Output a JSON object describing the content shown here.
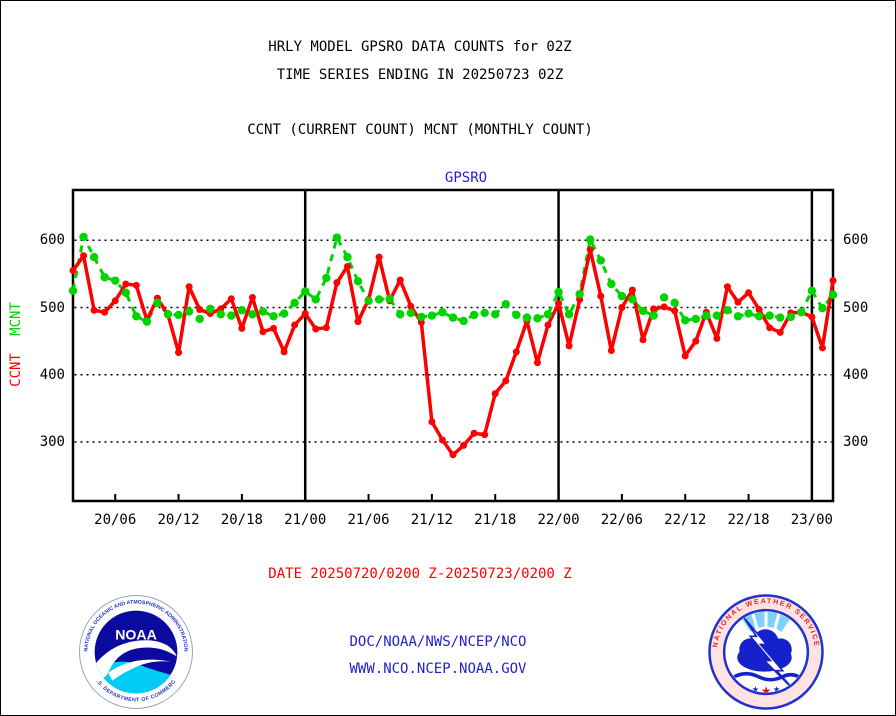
{
  "header": {
    "line1": "HRLY MODEL GPSRO DATA COUNTS for 02Z",
    "line2": "TIME SERIES ENDING IN 20250723 02Z",
    "line3": "CCNT (CURRENT COUNT) MCNT (MONTHLY COUNT)"
  },
  "chart": {
    "title": "GPSRO",
    "mcnt_label": "MCNT",
    "ccnt_label": "CCNT"
  },
  "chart_data": {
    "type": "line",
    "title": "GPSRO",
    "xlabel": "",
    "ylabel_left": "CCNT MCNT",
    "grid": "dotted-horizontal",
    "ylim": [
      212,
      675
    ],
    "y_ticks": [
      600,
      500,
      400,
      300
    ],
    "x_tick_labels": [
      "20/06",
      "20/12",
      "20/18",
      "21/00",
      "21/06",
      "21/12",
      "21/18",
      "22/00",
      "22/06",
      "22/12",
      "22/18",
      "23/00"
    ],
    "x_tick_indices": [
      4,
      10,
      16,
      22,
      28,
      34,
      40,
      46,
      52,
      58,
      64,
      70
    ],
    "major_vline_indices": [
      22,
      46,
      70
    ],
    "categories": [
      "20/02",
      "20/03",
      "20/04",
      "20/05",
      "20/06",
      "20/07",
      "20/08",
      "20/09",
      "20/10",
      "20/11",
      "20/12",
      "20/13",
      "20/14",
      "20/15",
      "20/16",
      "20/17",
      "20/18",
      "20/19",
      "20/20",
      "20/21",
      "20/22",
      "20/23",
      "21/00",
      "21/01",
      "21/02",
      "21/03",
      "21/04",
      "21/05",
      "21/06",
      "21/07",
      "21/08",
      "21/09",
      "21/10",
      "21/11",
      "21/12",
      "21/13",
      "21/14",
      "21/15",
      "21/16",
      "21/17",
      "21/18",
      "21/19",
      "21/20",
      "21/21",
      "21/22",
      "21/23",
      "22/00",
      "22/01",
      "22/02",
      "22/03",
      "22/04",
      "22/05",
      "22/06",
      "22/07",
      "22/08",
      "22/09",
      "22/10",
      "22/11",
      "22/12",
      "22/13",
      "22/14",
      "22/15",
      "22/16",
      "22/17",
      "22/18",
      "22/19",
      "22/20",
      "22/21",
      "22/22",
      "22/23",
      "23/00",
      "23/01",
      "23/02"
    ],
    "series": [
      {
        "name": "CCNT",
        "color": "#ff0000",
        "style": "solid",
        "values": [
          555,
          577,
          496,
          493,
          510,
          535,
          533,
          481,
          514,
          489,
          433,
          531,
          497,
          491,
          498,
          513,
          469,
          515,
          464,
          469,
          434,
          474,
          491,
          468,
          470,
          537,
          561,
          479,
          512,
          575,
          510,
          541,
          502,
          478,
          330,
          303,
          281,
          295,
          313,
          311,
          372,
          391,
          434,
          480,
          418,
          474,
          506,
          443,
          512,
          586,
          517,
          436,
          500,
          526,
          452,
          498,
          501,
          495,
          428,
          450,
          493,
          454,
          531,
          508,
          522,
          497,
          470,
          463,
          492,
          493,
          486,
          440,
          540
        ]
      },
      {
        "name": "MCNT",
        "color": "#00d400",
        "style": "dashed",
        "values": [
          525,
          605,
          575,
          545,
          540,
          522,
          487,
          479,
          507,
          490,
          489,
          494,
          483,
          498,
          490,
          488,
          496,
          490,
          494,
          487,
          491,
          507,
          524,
          512,
          544,
          604,
          575,
          539,
          510,
          512,
          513,
          490,
          492,
          486,
          488,
          493,
          485,
          480,
          489,
          492,
          490,
          505,
          489,
          485,
          484,
          490,
          523,
          490,
          520,
          601,
          570,
          535,
          517,
          512,
          495,
          488,
          515,
          507,
          481,
          483,
          488,
          488,
          496,
          487,
          491,
          487,
          488,
          485,
          486,
          493,
          525,
          499,
          519
        ]
      }
    ],
    "legend_position": "left-axis-rotated"
  },
  "footer": {
    "date_range": "DATE 20250720/0200 Z-20250723/0200 Z",
    "org": "DOC/NOAA/NWS/NCEP/NCO",
    "url": "WWW.NCO.NCEP.NOAA.GOV"
  },
  "logos": {
    "noaa": {
      "label": "NOAA",
      "ring_top": "NATIONAL OCEANIC AND ATMOSPHERIC ADMINISTRATION",
      "ring_bottom": "U.S. DEPARTMENT OF COMMERCE"
    },
    "nws": {
      "ring": "NATIONAL WEATHER SERVICE"
    }
  },
  "colors": {
    "ccnt_red": "#ff0000",
    "mcnt_green": "#00d400",
    "link_blue": "#2222cc",
    "text_black": "#000000"
  }
}
